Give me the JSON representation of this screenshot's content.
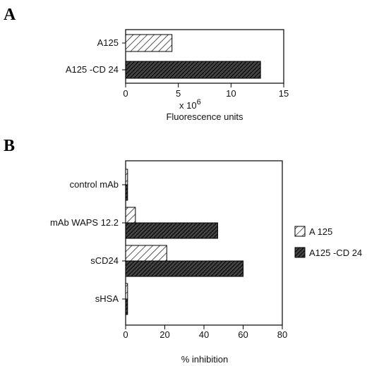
{
  "chart_data": [
    {
      "panel": "A",
      "type": "bar",
      "orientation": "horizontal",
      "categories": [
        "A125",
        "A125 -CD 24"
      ],
      "styles": [
        "light",
        "dark"
      ],
      "values": [
        4.4,
        12.8
      ],
      "xlim": [
        0,
        15
      ],
      "xticks": [
        0,
        5,
        10,
        15
      ],
      "xticks_label": [
        "0",
        "5",
        "10",
        "15"
      ],
      "multiplier_label": "x 10",
      "multiplier_exp": "6",
      "xlabel": "Fluorescence units"
    },
    {
      "panel": "B",
      "type": "bar",
      "orientation": "horizontal",
      "categories": [
        "control mAb",
        "mAb WAPS 12.2",
        "sCD24",
        "sHSA"
      ],
      "series": [
        {
          "name": "A 125",
          "style": "light",
          "values": [
            1,
            5,
            21,
            1
          ]
        },
        {
          "name": "A125 -CD 24",
          "style": "dark",
          "values": [
            1,
            47,
            60,
            1
          ]
        }
      ],
      "xlim": [
        0,
        80
      ],
      "xticks": [
        0,
        20,
        40,
        60,
        80
      ],
      "xticks_label": [
        "0",
        "20",
        "40",
        "60",
        "80"
      ],
      "xlabel": "% inhibition",
      "legend_position": "right"
    }
  ],
  "colors": {
    "ink": "#000000",
    "light_fill": "#ffffff",
    "dark_fill": "#3a3a3a"
  }
}
